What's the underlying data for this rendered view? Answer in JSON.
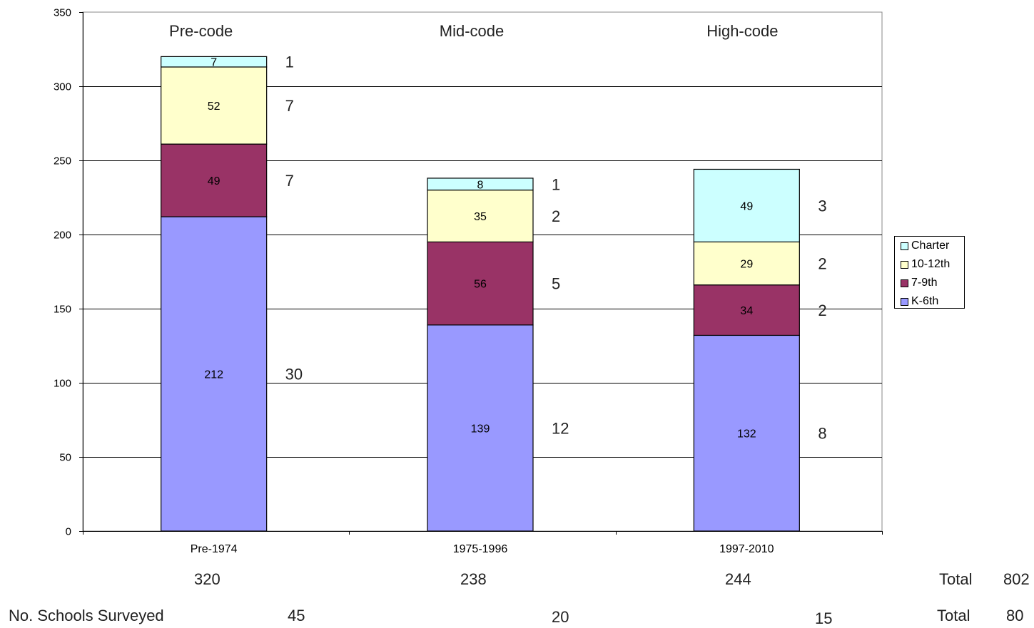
{
  "chart_data": {
    "type": "bar",
    "stacked": true,
    "categories": [
      "Pre-1974",
      "1975-1996",
      "1997-2010"
    ],
    "group_labels": [
      "Pre-code",
      "Mid-code",
      "High-code"
    ],
    "series": [
      {
        "name": "K-6th",
        "values": [
          212,
          139,
          132
        ],
        "color": "#9999ff"
      },
      {
        "name": "7-9th",
        "values": [
          49,
          56,
          34
        ],
        "color": "#993366"
      },
      {
        "name": "10-12th",
        "values": [
          52,
          35,
          29
        ],
        "color": "#ffffcc"
      },
      {
        "name": "Charter",
        "values": [
          7,
          8,
          49
        ],
        "color": "#ccffff"
      }
    ],
    "schools_by_segment": [
      [
        "30",
        "12",
        "8"
      ],
      [
        "7",
        "5",
        "2"
      ],
      [
        "7",
        "2",
        "2"
      ],
      [
        "1",
        "1",
        "3"
      ]
    ],
    "totals_row": [
      "320",
      "238",
      "244"
    ],
    "grand_total": {
      "label": "Total",
      "value": "802"
    },
    "schools_surveyed": {
      "label": "No. Schools Surveyed",
      "values": [
        "45",
        "20",
        "15"
      ],
      "total_label": "Total",
      "total_value": "80"
    },
    "y_ticks": [
      "0",
      "50",
      "100",
      "150",
      "200",
      "250",
      "300",
      "350"
    ],
    "ylim": [
      0,
      350
    ],
    "grid": true,
    "legend_position": "right"
  }
}
